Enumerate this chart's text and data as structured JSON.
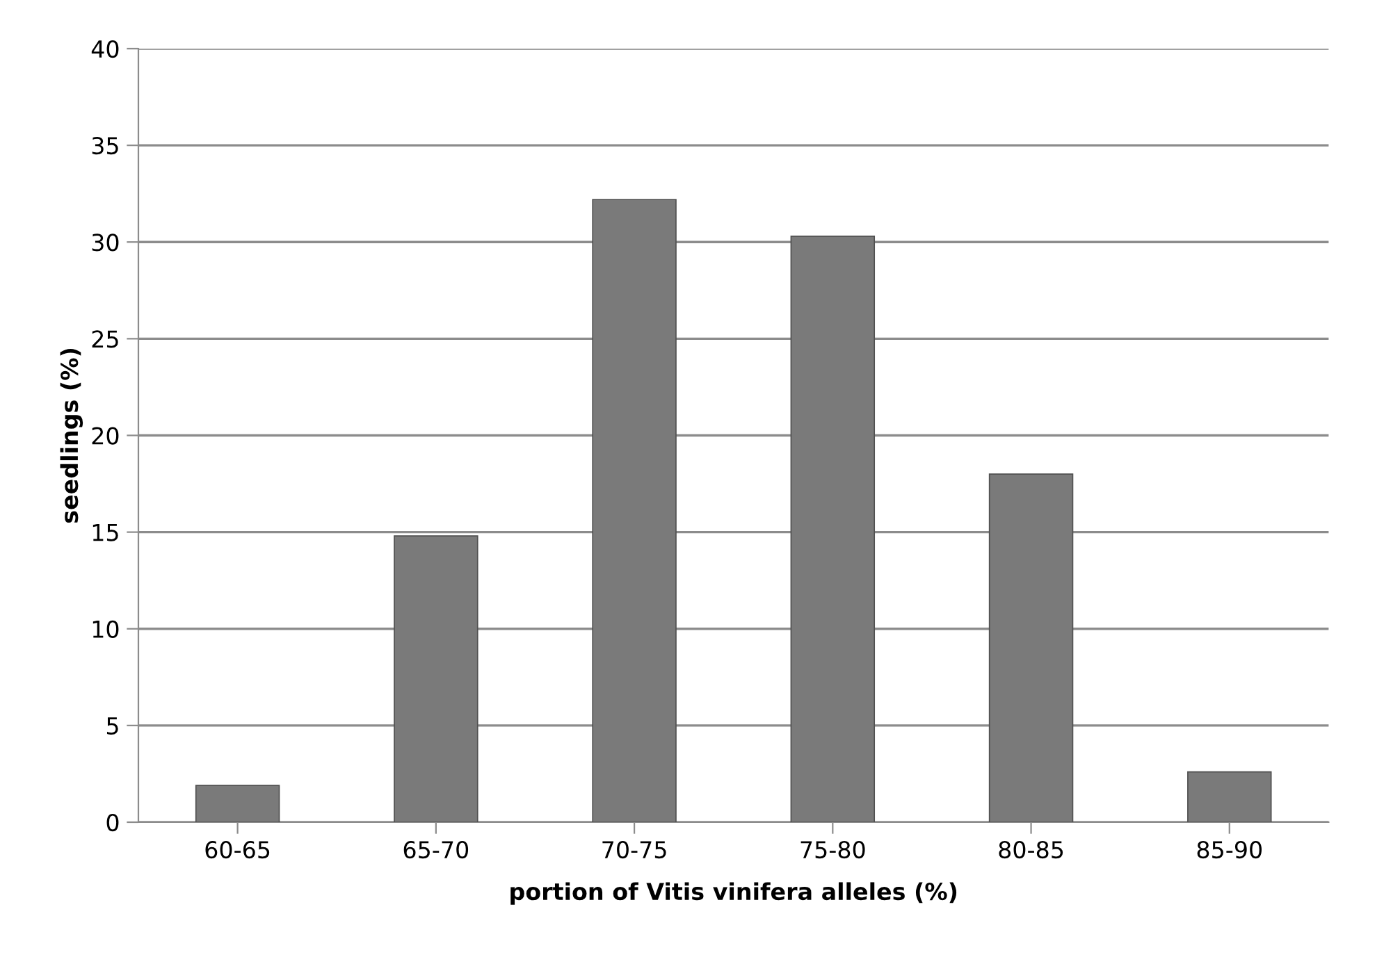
{
  "chart_data": {
    "type": "bar",
    "categories": [
      "60-65",
      "65-70",
      "70-75",
      "75-80",
      "80-85",
      "85-90"
    ],
    "values": [
      1.9,
      14.8,
      32.2,
      30.3,
      18.0,
      2.6
    ],
    "color": "#7a7a7a",
    "xlabel": "portion of Vitis vinifera alleles (%)",
    "ylabel": "seedlings (%)",
    "ylim": [
      0,
      40
    ],
    "yticks": [
      0,
      5,
      10,
      15,
      20,
      25,
      30,
      35,
      40
    ],
    "grid": "y",
    "legend": false
  }
}
